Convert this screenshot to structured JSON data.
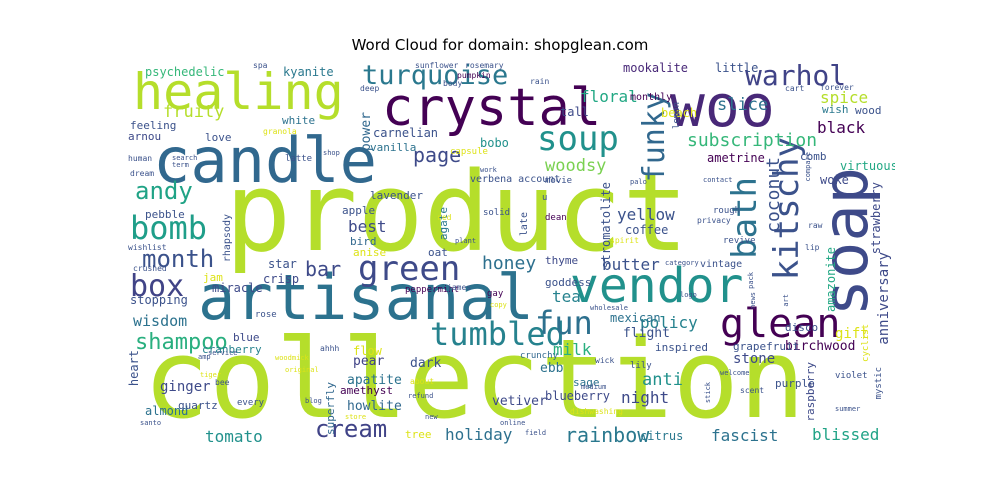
{
  "title": "Word Cloud for domain: shopglean.com",
  "words": [
    "product",
    "collection",
    "artisanal",
    "candle",
    "soap",
    "crystal",
    "woo",
    "vendor",
    "healing",
    "glean",
    "turquoise",
    "kitschy",
    "bath",
    "tumbled",
    "green",
    "funky",
    "warhol",
    "soup",
    "fun",
    "andy",
    "bomb",
    "month",
    "box",
    "shampoo",
    "cream",
    "page",
    "rainbow",
    "woodsy",
    "honey",
    "bar",
    "coconut",
    "subscription",
    "spice",
    "floral",
    "slice",
    "black",
    "fruity",
    "tea",
    "milk",
    "butter",
    "policy",
    "wisdom",
    "tomato",
    "blissed",
    "holiday",
    "anti",
    "night",
    "yellow",
    "fascist",
    "psychedelic",
    "kyanite",
    "mookalite",
    "little",
    "wish",
    "ametrine",
    "anniversary",
    "gift",
    "woke",
    "best",
    "bird",
    "carnelian",
    "vanilla",
    "lavender",
    "bobo",
    "power",
    "amazonite",
    "apple",
    "stromatolite",
    "agate",
    "coffee",
    "ebb",
    "blueberry",
    "vetiver",
    "citrus",
    "sage",
    "stone",
    "birchwood",
    "grapefruit",
    "inspired",
    "flight",
    "mexican",
    "goddess",
    "peppermint",
    "crunchy",
    "dark",
    "pear",
    "howlite",
    "apatite",
    "amethyst",
    "superfly",
    "ginger",
    "heart",
    "almond",
    "quartz",
    "cranberry",
    "flow",
    "blue",
    "rose",
    "stopping",
    "crisp",
    "star",
    "miracle",
    "jam",
    "pebble",
    "rhapsody",
    "thyme",
    "oat",
    "anise",
    "white",
    "love",
    "arnou",
    "feeling",
    "granola",
    "spa",
    "sunflower",
    "rosemary",
    "pumpkin",
    "body",
    "deep",
    "rain",
    "tall",
    "beach",
    "monthly",
    "lemon",
    "forever",
    "cart",
    "wood",
    "virtuous",
    "comb",
    "human",
    "dream",
    "search",
    "term",
    "shop",
    "capsule",
    "work",
    "movie",
    "palo",
    "verbena account",
    "late",
    "u",
    "dean",
    "solid",
    "red",
    "latte",
    "wishlist",
    "crushed",
    "spirit",
    "revive",
    "lip",
    "raw",
    "strawberry",
    "privacy",
    "rough",
    "compare",
    "contact",
    "cyclist",
    "category",
    "vintage",
    "gay",
    "james",
    "copy",
    "wholesale",
    "logo",
    "pack",
    "news",
    "art",
    "disco",
    "purple",
    "violet",
    "mystic",
    "summer",
    "welcome",
    "scent",
    "stick",
    "medium",
    "lily",
    "wick",
    "refund",
    "about",
    "every",
    "bee",
    "amp",
    "tiger",
    "original",
    "service",
    "woodmick",
    "ahhh",
    "blog",
    "store",
    "dishwashing",
    "raspberry",
    "tree",
    "new",
    "online",
    "field",
    "santo",
    "plant"
  ]
}
